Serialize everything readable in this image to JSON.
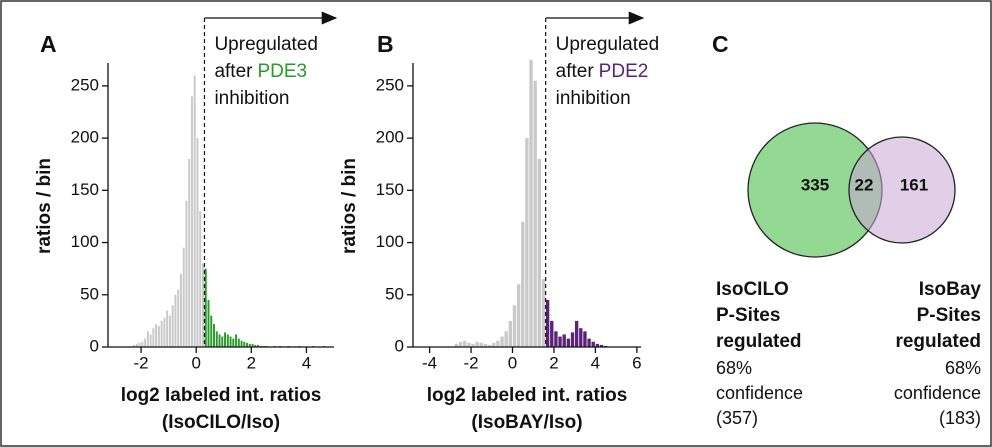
{
  "chart_data": [
    {
      "type": "histogram",
      "panel": "A",
      "bins": [
        -2.3,
        -2.2,
        -2.1,
        -2.0,
        -1.9,
        -1.8,
        -1.7,
        -1.6,
        -1.5,
        -1.4,
        -1.3,
        -1.2,
        -1.1,
        -1.0,
        -0.9,
        -0.8,
        -0.7,
        -0.6,
        -0.5,
        -0.4,
        -0.3,
        -0.2,
        -0.1,
        0.0,
        0.1,
        0.2,
        0.3,
        0.4,
        0.5,
        0.6,
        0.7,
        0.8,
        0.9,
        1.0,
        1.1,
        1.2,
        1.3,
        1.4,
        1.5,
        1.6,
        1.7,
        1.8,
        1.9,
        2.0,
        2.1,
        2.2,
        2.3,
        2.4,
        2.5,
        2.6,
        2.7,
        2.8,
        2.9,
        3.0,
        3.1,
        3.2,
        3.3,
        3.4,
        3.5,
        3.6,
        3.7,
        3.8,
        3.9,
        4.0,
        4.1,
        4.2,
        4.3,
        4.4,
        4.5,
        4.6,
        4.7
      ],
      "counts": [
        2,
        3,
        4,
        5,
        8,
        15,
        12,
        18,
        22,
        20,
        25,
        28,
        35,
        30,
        40,
        50,
        55,
        70,
        95,
        140,
        180,
        240,
        260,
        200,
        130,
        80,
        75,
        45,
        30,
        22,
        15,
        12,
        10,
        14,
        12,
        10,
        8,
        12,
        8,
        6,
        5,
        4,
        3,
        3,
        2,
        2,
        1,
        1,
        1,
        0,
        0,
        1,
        0,
        1,
        0,
        0,
        1,
        0,
        0,
        0,
        1,
        0,
        0,
        0,
        0,
        1,
        0,
        0,
        0,
        1
      ],
      "threshold": 0.3,
      "colors": {
        "below": "#c9c9c9",
        "above": "#2a9a2a"
      },
      "xlim": [
        -3.2,
        5.0
      ],
      "xticks": [
        -2,
        0,
        2,
        4
      ],
      "ylim": [
        0,
        270
      ],
      "yticks": [
        0,
        50,
        100,
        150,
        200,
        250
      ],
      "ylabel": "ratios / bin",
      "xlabel": [
        "log2 labeled int. ratios",
        "(IsoCILO/Iso)"
      ],
      "annotation": {
        "lines": [
          "Upregulated",
          "after",
          "inhibition"
        ],
        "highlight": "PDE3"
      }
    },
    {
      "type": "histogram",
      "panel": "B",
      "bins": [
        -2.8,
        -2.6,
        -2.4,
        -2.2,
        -2.0,
        -1.8,
        -1.6,
        -1.4,
        -1.2,
        -1.0,
        -0.8,
        -0.6,
        -0.4,
        -0.2,
        0.0,
        0.2,
        0.4,
        0.6,
        0.8,
        1.0,
        1.2,
        1.4,
        1.6,
        1.8,
        2.0,
        2.2,
        2.4,
        2.6,
        2.8,
        3.0,
        3.2,
        3.4,
        3.6,
        3.8,
        4.0,
        4.2,
        4.4,
        4.6
      ],
      "counts": [
        3,
        5,
        6,
        4,
        3,
        5,
        4,
        3,
        2,
        4,
        6,
        10,
        15,
        25,
        40,
        60,
        120,
        200,
        275,
        255,
        180,
        65,
        45,
        25,
        15,
        10,
        12,
        8,
        14,
        25,
        18,
        15,
        8,
        5,
        3,
        2,
        1
      ],
      "threshold": 1.6,
      "colors": {
        "below": "#c9c9c9",
        "above": "#5a2378"
      },
      "xlim": [
        -4.8,
        6.2
      ],
      "xticks": [
        -4,
        -2,
        0,
        2,
        4,
        6
      ],
      "ylim": [
        0,
        270
      ],
      "yticks": [
        0,
        50,
        100,
        150,
        200,
        250
      ],
      "ylabel": "ratios / bin",
      "xlabel": [
        "log2 labeled int. ratios",
        "(IsoBAY/Iso)"
      ],
      "annotation": {
        "lines": [
          "Upregulated",
          "after",
          "inhibition"
        ],
        "highlight": "PDE2"
      }
    },
    {
      "type": "venn",
      "panel": "C",
      "sets": [
        {
          "label_bold": [
            "IsoCILO",
            "P-Sites",
            "regulated"
          ],
          "label": [
            "68%",
            "confidence",
            "(357)"
          ],
          "color": "#93d993",
          "text_color": "#2a9a2a",
          "only": 335
        },
        {
          "label_bold": [
            "IsoBay",
            "P-Sites",
            "regulated"
          ],
          "label": [
            "68%",
            "confidence",
            "(183)"
          ],
          "color": "#c9a6d3",
          "text_color": "#7b3a9e",
          "only": 161
        }
      ],
      "overlap": 22
    }
  ]
}
